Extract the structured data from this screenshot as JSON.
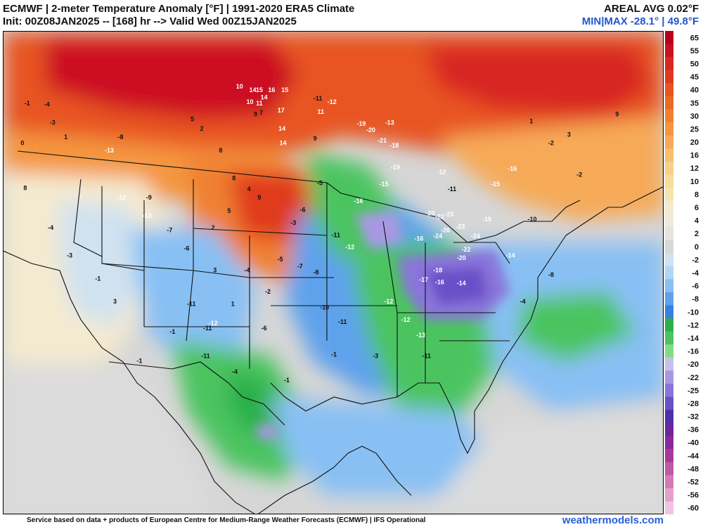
{
  "header": {
    "title_line1": "ECMWF | 2-meter Temperature Anomaly [°F] | 1991-2020 ERA5 Climate",
    "title_line2": "Init: 00Z08JAN2025 -- [168] hr --> Valid Wed 00Z15JAN2025",
    "areal_avg": "AREAL AVG 0.02°F",
    "min_max": "MIN|MAX -28.1° | 49.8°F"
  },
  "footer": {
    "credit": "Service based on data + products of European Centre for Medium-Range Weather Forecasts (ECMWF) | IFS Operational",
    "site": "weathermodels.com"
  },
  "colorbar": {
    "ticks": [
      {
        "value": "65",
        "color": "#b8001c"
      },
      {
        "value": "55",
        "color": "#cc1020"
      },
      {
        "value": "50",
        "color": "#d82820"
      },
      {
        "value": "45",
        "color": "#e03a1e"
      },
      {
        "value": "40",
        "color": "#e85420"
      },
      {
        "value": "35",
        "color": "#ec6a24"
      },
      {
        "value": "30",
        "color": "#f08030"
      },
      {
        "value": "25",
        "color": "#f49640"
      },
      {
        "value": "20",
        "color": "#f6aa58"
      },
      {
        "value": "16",
        "color": "#f8be70"
      },
      {
        "value": "12",
        "color": "#f8cf88"
      },
      {
        "value": "10",
        "color": "#f8dc9c"
      },
      {
        "value": "8",
        "color": "#f6e4b0"
      },
      {
        "value": "6",
        "color": "#f4ead0"
      },
      {
        "value": "4",
        "color": "#f0ead8"
      },
      {
        "value": "2",
        "color": "#e6e4de"
      },
      {
        "value": "0",
        "color": "#d8d8d8"
      },
      {
        "value": "-2",
        "color": "#d0e2f0"
      },
      {
        "value": "-4",
        "color": "#b0d6f4"
      },
      {
        "value": "-6",
        "color": "#88c0f4"
      },
      {
        "value": "-8",
        "color": "#5ea2ec"
      },
      {
        "value": "-10",
        "color": "#3b7ee2"
      },
      {
        "value": "-12",
        "color": "#2cb04a"
      },
      {
        "value": "-14",
        "color": "#4cc460"
      },
      {
        "value": "-16",
        "color": "#82dc84"
      },
      {
        "value": "-20",
        "color": "#c8c0ec"
      },
      {
        "value": "-22",
        "color": "#a898e4"
      },
      {
        "value": "-25",
        "color": "#8a74da"
      },
      {
        "value": "-28",
        "color": "#6a50c8"
      },
      {
        "value": "-32",
        "color": "#5030a8"
      },
      {
        "value": "-36",
        "color": "#6a2898"
      },
      {
        "value": "-40",
        "color": "#8a2a9a"
      },
      {
        "value": "-44",
        "color": "#a8389e"
      },
      {
        "value": "-48",
        "color": "#c058a8"
      },
      {
        "value": "-52",
        "color": "#d47ab8"
      },
      {
        "value": "-56",
        "color": "#e4a0cc"
      },
      {
        "value": "-60",
        "color": "#f0c4de"
      }
    ]
  },
  "map_labels": [
    {
      "text": "10",
      "lon": -101.0,
      "lat": 49.3
    },
    {
      "text": "14",
      "lon": -99.6,
      "lat": 49.0
    },
    {
      "text": "15",
      "lon": -98.9,
      "lat": 49.0
    },
    {
      "text": "16",
      "lon": -97.6,
      "lat": 49.0
    },
    {
      "text": "15",
      "lon": -96.2,
      "lat": 49.0
    },
    {
      "text": "14",
      "lon": -98.4,
      "lat": 48.4
    },
    {
      "text": "11",
      "lon": -98.9,
      "lat": 47.9
    },
    {
      "text": "10",
      "lon": -99.9,
      "lat": 48.0
    },
    {
      "text": "17",
      "lon": -96.6,
      "lat": 47.3
    },
    {
      "text": "9",
      "lon": -99.3,
      "lat": 47.0
    },
    {
      "text": "7",
      "lon": -98.7,
      "lat": 47.1
    },
    {
      "text": "14",
      "lon": -96.5,
      "lat": 45.8
    },
    {
      "text": "14",
      "lon": -96.4,
      "lat": 44.6
    },
    {
      "text": "9",
      "lon": -93.0,
      "lat": 45.0
    },
    {
      "text": "11",
      "lon": -92.4,
      "lat": 47.2
    },
    {
      "text": "-11",
      "lon": -92.7,
      "lat": 48.3
    },
    {
      "text": "-12",
      "lon": -91.2,
      "lat": 48.0
    },
    {
      "text": "-19",
      "lon": -88.1,
      "lat": 46.2
    },
    {
      "text": "-20",
      "lon": -87.1,
      "lat": 45.7
    },
    {
      "text": "-13",
      "lon": -85.1,
      "lat": 46.3
    },
    {
      "text": "-18",
      "lon": -84.6,
      "lat": 44.4
    },
    {
      "text": "-21",
      "lon": -85.9,
      "lat": 44.8
    },
    {
      "text": "-19",
      "lon": -84.5,
      "lat": 42.6
    },
    {
      "text": "-20",
      "lon": -80.8,
      "lat": 38.8
    },
    {
      "text": "-22",
      "lon": -79.8,
      "lat": 38.5
    },
    {
      "text": "-23",
      "lon": -78.8,
      "lat": 38.7
    },
    {
      "text": "-24",
      "lon": -80.0,
      "lat": 36.9
    },
    {
      "text": "-26",
      "lon": -79.2,
      "lat": 37.4
    },
    {
      "text": "-23",
      "lon": -77.6,
      "lat": 37.7
    },
    {
      "text": "-24",
      "lon": -76.0,
      "lat": 36.9
    },
    {
      "text": "-22",
      "lon": -77.0,
      "lat": 35.8
    },
    {
      "text": "-20",
      "lon": -77.5,
      "lat": 35.1
    },
    {
      "text": "-19",
      "lon": -74.8,
      "lat": 38.3
    },
    {
      "text": "-16",
      "lon": -82.0,
      "lat": 36.7
    },
    {
      "text": "-18",
      "lon": -80.0,
      "lat": 34.1
    },
    {
      "text": "-17",
      "lon": -81.5,
      "lat": 33.3
    },
    {
      "text": "-16",
      "lon": -79.8,
      "lat": 33.1
    },
    {
      "text": "-14",
      "lon": -77.5,
      "lat": 33.0
    },
    {
      "text": "-12",
      "lon": -85.2,
      "lat": 31.5
    },
    {
      "text": "-12",
      "lon": -83.4,
      "lat": 30.0
    },
    {
      "text": "-13",
      "lon": -81.8,
      "lat": 28.7
    },
    {
      "text": "-11",
      "lon": -81.2,
      "lat": 27.0
    },
    {
      "text": "-11",
      "lon": -90.1,
      "lat": 29.8
    },
    {
      "text": "-10",
      "lon": -92.0,
      "lat": 31.0
    },
    {
      "text": "-8",
      "lon": -92.9,
      "lat": 33.9
    },
    {
      "text": "-7",
      "lon": -94.6,
      "lat": 34.4
    },
    {
      "text": "-5",
      "lon": -96.7,
      "lat": 35.0
    },
    {
      "text": "-2",
      "lon": -98.0,
      "lat": 32.3
    },
    {
      "text": "-4",
      "lon": -100.2,
      "lat": 34.1
    },
    {
      "text": "-6",
      "lon": -98.4,
      "lat": 29.3
    },
    {
      "text": "-11",
      "lon": -104.4,
      "lat": 29.3
    },
    {
      "text": "-12",
      "lon": -103.8,
      "lat": 29.7
    },
    {
      "text": "-11",
      "lon": -106.1,
      "lat": 31.3
    },
    {
      "text": "-13",
      "lon": -110.8,
      "lat": 38.6
    },
    {
      "text": "-12",
      "lon": -113.5,
      "lat": 40.1
    },
    {
      "text": "-9",
      "lon": -110.6,
      "lat": 40.1
    },
    {
      "text": "-7",
      "lon": -108.4,
      "lat": 37.4
    },
    {
      "text": "-6",
      "lon": -106.6,
      "lat": 35.9
    },
    {
      "text": "-13",
      "lon": -114.8,
      "lat": 44.0
    },
    {
      "text": "-8",
      "lon": -113.6,
      "lat": 45.1
    },
    {
      "text": "-4",
      "lon": -121.4,
      "lat": 47.8
    },
    {
      "text": "-1",
      "lon": -123.5,
      "lat": 47.9
    },
    {
      "text": "-3",
      "lon": -120.8,
      "lat": 46.3
    },
    {
      "text": "1",
      "lon": -119.4,
      "lat": 45.1
    },
    {
      "text": "0",
      "lon": -124.0,
      "lat": 44.6
    },
    {
      "text": "8",
      "lon": -123.7,
      "lat": 40.9
    },
    {
      "text": "-4",
      "lon": -121.0,
      "lat": 37.6
    },
    {
      "text": "-3",
      "lon": -119.0,
      "lat": 35.3
    },
    {
      "text": "-1",
      "lon": -116.0,
      "lat": 33.4
    },
    {
      "text": "3",
      "lon": -114.2,
      "lat": 31.5
    },
    {
      "text": "5",
      "lon": -106.0,
      "lat": 46.6
    },
    {
      "text": "2",
      "lon": -105.0,
      "lat": 45.8
    },
    {
      "text": "8",
      "lon": -103.0,
      "lat": 44.0
    },
    {
      "text": "8",
      "lon": -101.6,
      "lat": 41.7
    },
    {
      "text": "4",
      "lon": -100.0,
      "lat": 40.8
    },
    {
      "text": "9",
      "lon": -98.9,
      "lat": 40.1
    },
    {
      "text": "5",
      "lon": -102.1,
      "lat": 39.0
    },
    {
      "text": "2",
      "lon": -103.8,
      "lat": 37.6
    },
    {
      "text": "3",
      "lon": -103.6,
      "lat": 34.1
    },
    {
      "text": "1",
      "lon": -101.7,
      "lat": 31.3
    },
    {
      "text": "-3",
      "lon": -95.3,
      "lat": 38.0
    },
    {
      "text": "-6",
      "lon": -94.3,
      "lat": 39.1
    },
    {
      "text": "-5",
      "lon": -92.5,
      "lat": 41.3
    },
    {
      "text": "-11",
      "lon": -90.8,
      "lat": 37.0
    },
    {
      "text": "-12",
      "lon": -89.3,
      "lat": 36.0
    },
    {
      "text": "-16",
      "lon": -88.4,
      "lat": 39.8
    },
    {
      "text": "-15",
      "lon": -85.7,
      "lat": 41.2
    },
    {
      "text": "-12",
      "lon": -79.6,
      "lat": 42.2
    },
    {
      "text": "-11",
      "lon": -78.5,
      "lat": 40.8
    },
    {
      "text": "-15",
      "lon": -73.9,
      "lat": 41.2
    },
    {
      "text": "-16",
      "lon": -72.1,
      "lat": 42.5
    },
    {
      "text": "-2",
      "lon": -68.0,
      "lat": 44.6
    },
    {
      "text": "1",
      "lon": -70.1,
      "lat": 46.4
    },
    {
      "text": "3",
      "lon": -66.1,
      "lat": 45.3
    },
    {
      "text": "9",
      "lon": -61.0,
      "lat": 47.0
    },
    {
      "text": "-10",
      "lon": -70.0,
      "lat": 38.3
    },
    {
      "text": "-14",
      "lon": -72.3,
      "lat": 35.3
    },
    {
      "text": "-8",
      "lon": -68.0,
      "lat": 33.7
    },
    {
      "text": "-4",
      "lon": -71.0,
      "lat": 31.5
    },
    {
      "text": "-2",
      "lon": -65.0,
      "lat": 42.0
    },
    {
      "text": "-1",
      "lon": -91.0,
      "lat": 27.1
    },
    {
      "text": "-3",
      "lon": -86.6,
      "lat": 27.0
    },
    {
      "text": "-1",
      "lon": -96.0,
      "lat": 25.0
    },
    {
      "text": "-4",
      "lon": -101.5,
      "lat": 25.7
    },
    {
      "text": "-11",
      "lon": -104.6,
      "lat": 27.0
    },
    {
      "text": "-1",
      "lon": -108.1,
      "lat": 29.0
    },
    {
      "text": "-1",
      "lon": -111.6,
      "lat": 26.6
    }
  ]
}
